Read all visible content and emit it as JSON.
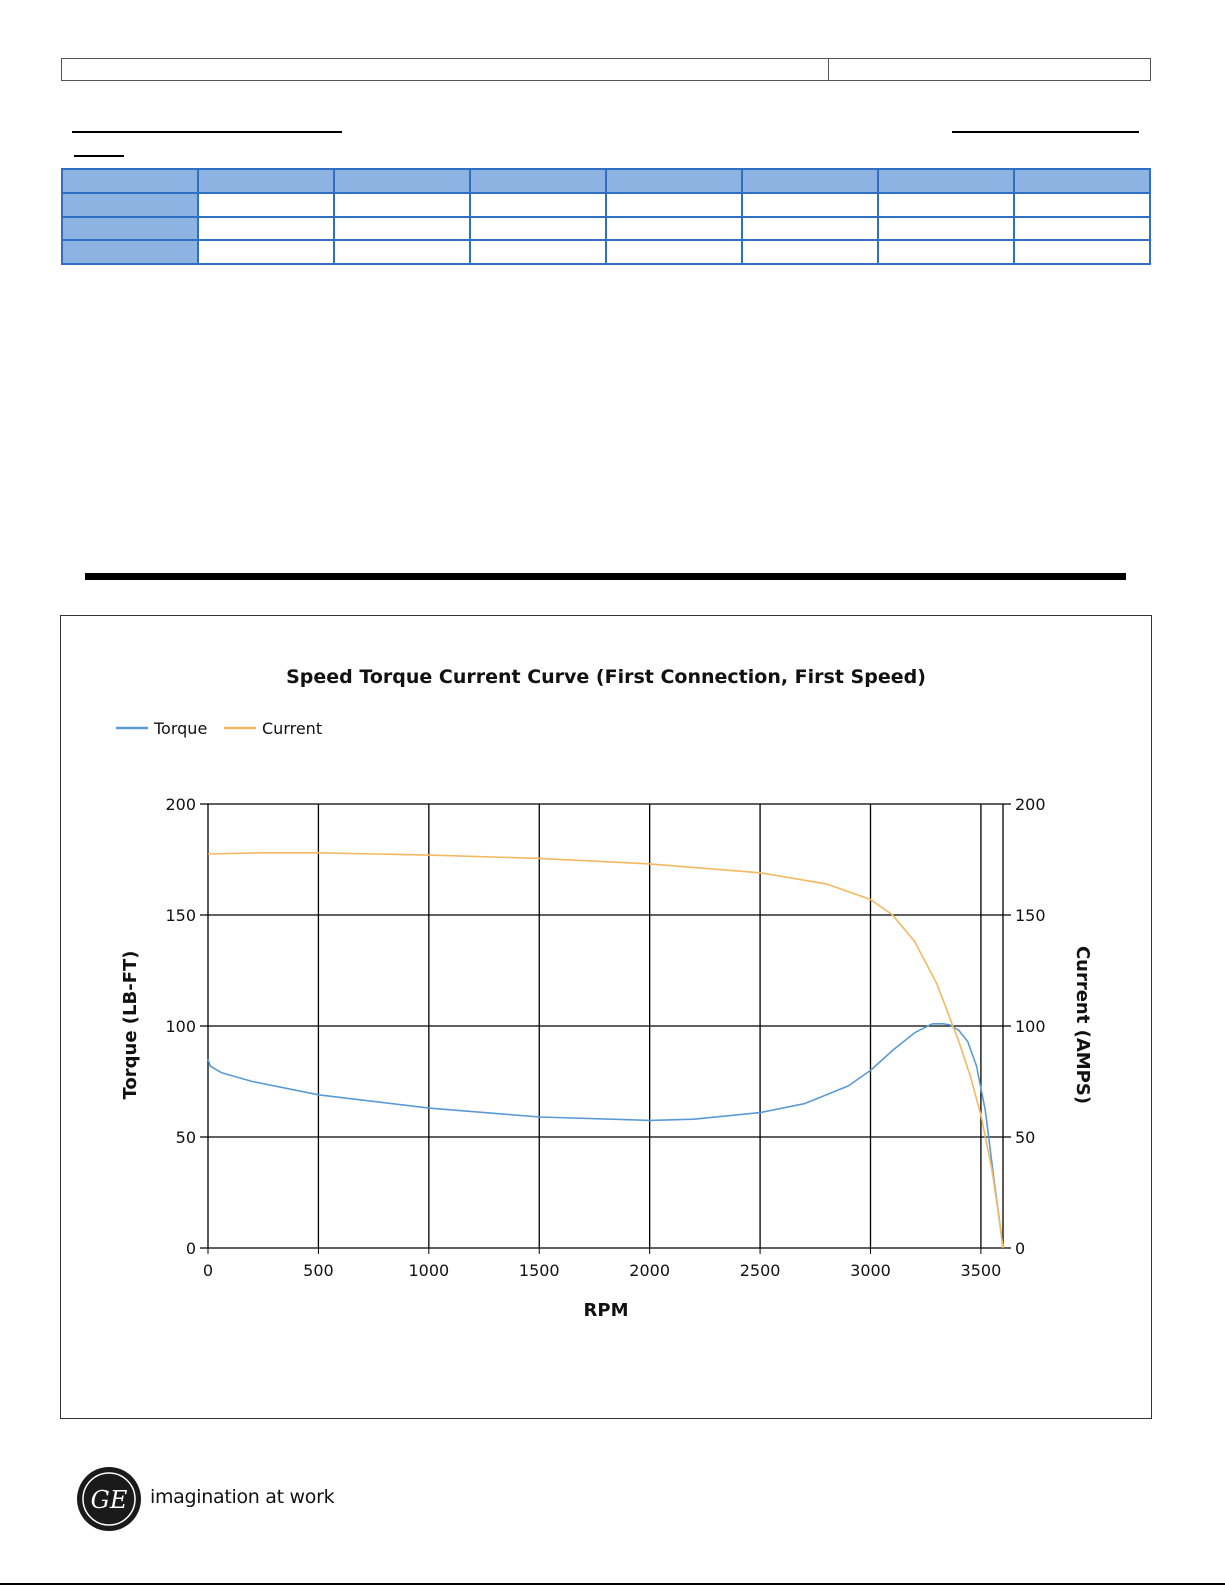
{
  "chart_data": {
    "type": "line",
    "title": "Speed Torque Current Curve (First Connection, First Speed)",
    "xlabel": "RPM",
    "ylabel_left": "Torque (LB-FT)",
    "ylabel_right": "Current (AMPS)",
    "xlim": [
      0,
      3600
    ],
    "ylim_left": [
      0,
      200
    ],
    "ylim_right": [
      0,
      200
    ],
    "x_ticks": [
      "0",
      "500",
      "1000",
      "1500",
      "2000",
      "2500",
      "3000",
      "3500"
    ],
    "y_ticks_left": [
      "0",
      "50",
      "100",
      "150",
      "200"
    ],
    "y_ticks_right": [
      "0",
      "50",
      "100",
      "150",
      "200"
    ],
    "grid": true,
    "legend_position": "top-left",
    "series": [
      {
        "name": "Torque",
        "axis": "left",
        "color": "#5b9bd5",
        "x": [
          0,
          10,
          60,
          200,
          500,
          1000,
          1500,
          2000,
          2200,
          2500,
          2700,
          2900,
          3000,
          3100,
          3200,
          3280,
          3330,
          3360,
          3400,
          3440,
          3480,
          3520,
          3560,
          3590,
          3600
        ],
        "y": [
          85,
          82,
          79,
          75,
          69,
          63,
          59,
          57.5,
          58,
          61,
          65,
          73,
          80,
          89,
          97,
          101,
          101,
          100.5,
          98,
          93,
          82,
          62,
          30,
          8,
          0
        ]
      },
      {
        "name": "Current",
        "axis": "right",
        "color": "#f4b860",
        "x": [
          0,
          250,
          500,
          1000,
          1500,
          2000,
          2500,
          2800,
          3000,
          3100,
          3200,
          3300,
          3350,
          3400,
          3450,
          3500,
          3550,
          3580,
          3600
        ],
        "y": [
          177.5,
          178,
          178,
          177,
          175.5,
          173,
          169,
          164,
          157,
          150,
          138,
          119,
          106,
          93,
          78,
          60,
          35,
          15,
          0
        ]
      }
    ]
  },
  "footer": {
    "logo_text": "GE",
    "tagline": "imagination at work"
  }
}
